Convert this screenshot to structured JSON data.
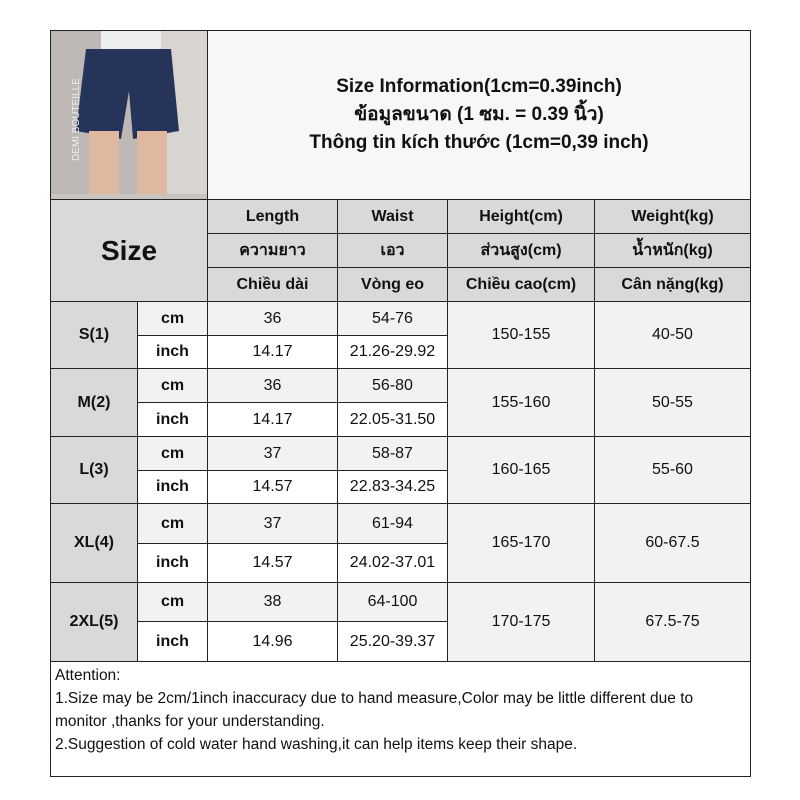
{
  "title": {
    "line1": "Size Information(1cm=0.39inch)",
    "line2": "ข้อมูลขนาด (1 ซม. = 0.39 นิ้ว)",
    "line3": "Thông tin kích thước (1cm=0,39 inch)"
  },
  "photo": {
    "watermark": "DEMI BOUTEILLE",
    "shorts_color": "#26345a"
  },
  "header": {
    "size": "Size",
    "columns": [
      {
        "en": "Length",
        "th": "ความยาว",
        "vi": "Chiều dài"
      },
      {
        "en": "Waist",
        "th": "เอว",
        "vi": "Vòng eo"
      },
      {
        "en": "Height(cm)",
        "th": "ส่วนสูง(cm)",
        "vi": "Chiều cao(cm)"
      },
      {
        "en": "Weight(kg)",
        "th": "น้ำหนัก(kg)",
        "vi": "Cân nặng(kg)"
      }
    ]
  },
  "units": {
    "cm": "cm",
    "inch": "inch"
  },
  "rows": [
    {
      "size": "S(1)",
      "length_cm": "36",
      "waist_cm": "54-76",
      "length_in": "14.17",
      "waist_in": "21.26-29.92",
      "height": "150-155",
      "weight": "40-50"
    },
    {
      "size": "M(2)",
      "length_cm": "36",
      "waist_cm": "56-80",
      "length_in": "14.17",
      "waist_in": "22.05-31.50",
      "height": "155-160",
      "weight": "50-55"
    },
    {
      "size": "L(3)",
      "length_cm": "37",
      "waist_cm": "58-87",
      "length_in": "14.57",
      "waist_in": "22.83-34.25",
      "height": "160-165",
      "weight": "55-60"
    },
    {
      "size": "XL(4)",
      "length_cm": "37",
      "waist_cm": "61-94",
      "length_in": "14.57",
      "waist_in": "24.02-37.01",
      "height": "165-170",
      "weight": "60-67.5"
    },
    {
      "size": "2XL(5)",
      "length_cm": "38",
      "waist_cm": "64-100",
      "length_in": "14.96",
      "waist_in": "25.20-39.37",
      "height": "170-175",
      "weight": "67.5-75"
    }
  ],
  "attention": {
    "heading": "Attention:",
    "note1": "1.Size may be 2cm/1inch inaccuracy due to hand measure,Color may be little different due to monitor ,thanks for your understanding.",
    "note2": "2.Suggestion of cold water hand washing,it can help items keep their shape."
  }
}
